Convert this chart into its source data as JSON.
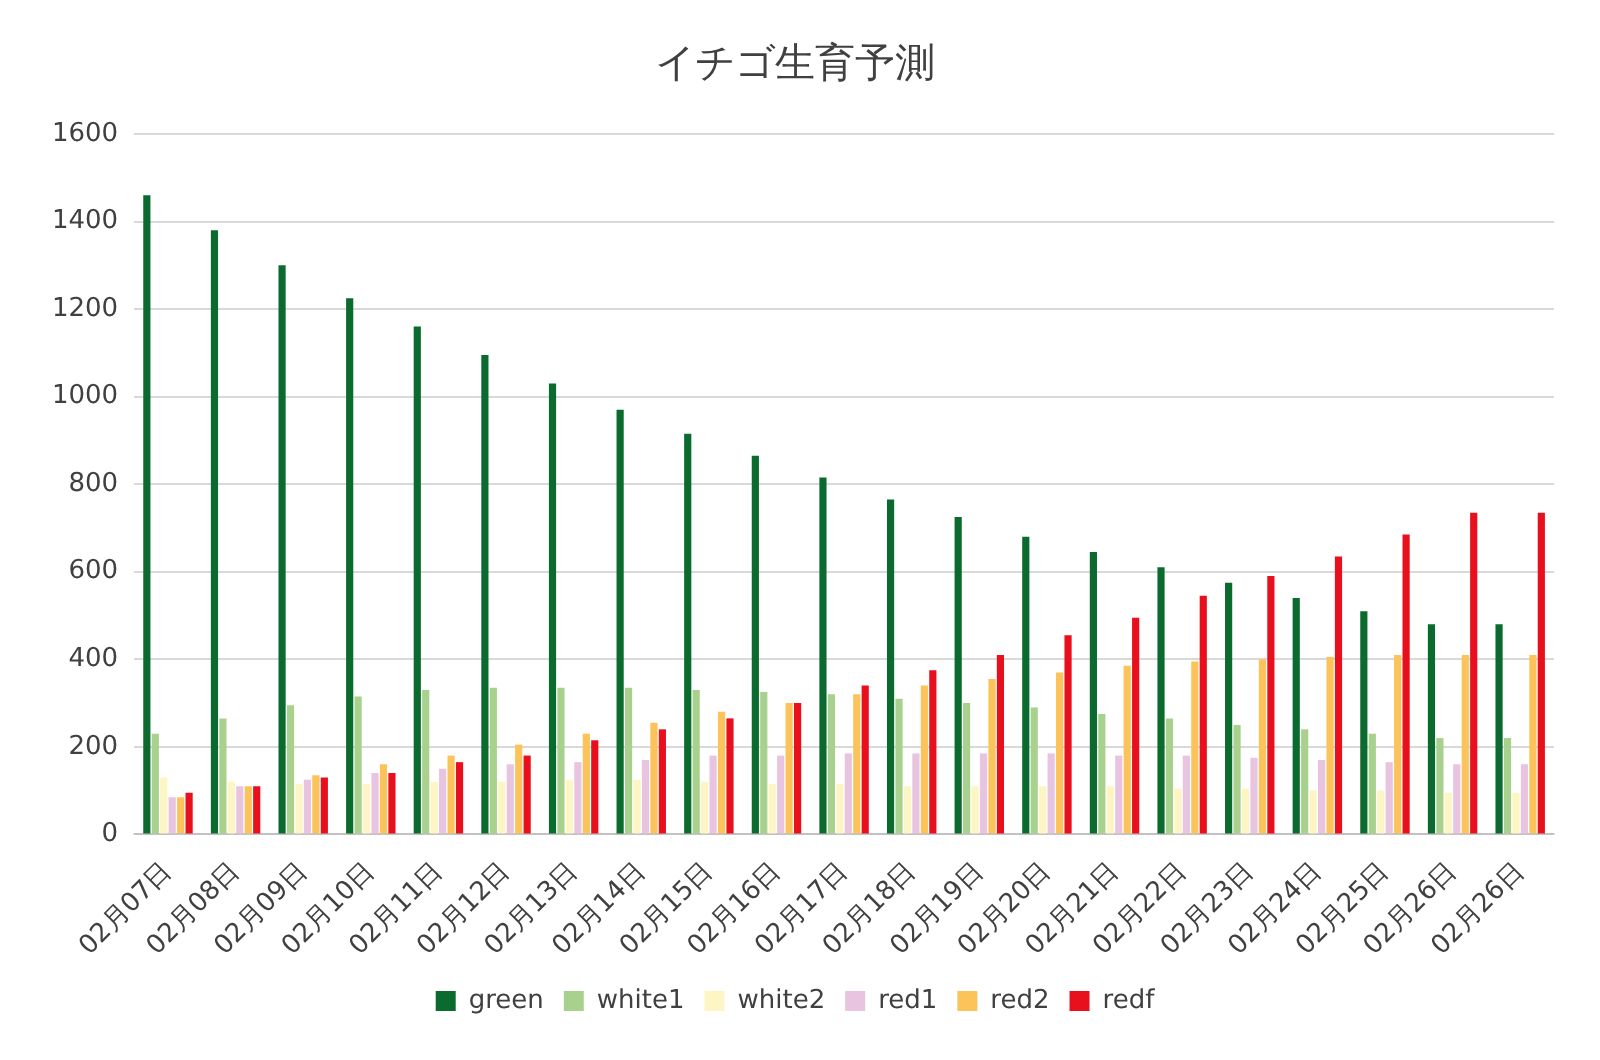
{
  "chart_data": {
    "type": "bar",
    "title": "イチゴ生育予測",
    "categories": [
      "02月07日",
      "02月08日",
      "02月09日",
      "02月10日",
      "02月11日",
      "02月12日",
      "02月13日",
      "02月14日",
      "02月15日",
      "02月16日",
      "02月17日",
      "02月18日",
      "02月19日",
      "02月20日",
      "02月21日",
      "02月22日",
      "02月23日",
      "02月24日",
      "02月25日",
      "02月26日",
      "02月26日"
    ],
    "series": [
      {
        "name": "green",
        "color": "#0b6b2e",
        "values": [
          1460,
          1380,
          1300,
          1225,
          1160,
          1095,
          1030,
          970,
          915,
          865,
          815,
          765,
          725,
          680,
          645,
          610,
          575,
          540,
          510,
          480,
          480
        ]
      },
      {
        "name": "white1",
        "color": "#a9d18e",
        "values": [
          230,
          265,
          295,
          315,
          330,
          335,
          335,
          335,
          330,
          325,
          320,
          310,
          300,
          290,
          275,
          265,
          250,
          240,
          230,
          220,
          220
        ]
      },
      {
        "name": "white2",
        "color": "#fdf5c4",
        "values": [
          130,
          120,
          115,
          115,
          120,
          120,
          125,
          125,
          120,
          115,
          115,
          110,
          110,
          110,
          110,
          105,
          105,
          100,
          100,
          95,
          95
        ]
      },
      {
        "name": "red1",
        "color": "#e8c4e0",
        "values": [
          85,
          110,
          125,
          140,
          150,
          160,
          165,
          170,
          180,
          180,
          185,
          185,
          185,
          185,
          180,
          180,
          175,
          170,
          165,
          160,
          160
        ]
      },
      {
        "name": "red2",
        "color": "#fbc35a",
        "values": [
          85,
          110,
          135,
          160,
          180,
          205,
          230,
          255,
          280,
          300,
          320,
          340,
          355,
          370,
          385,
          395,
          400,
          405,
          410,
          410,
          410
        ]
      },
      {
        "name": "redf",
        "color": "#e8101c",
        "values": [
          95,
          110,
          130,
          140,
          165,
          180,
          215,
          240,
          265,
          300,
          340,
          375,
          410,
          455,
          495,
          545,
          590,
          635,
          685,
          735,
          735
        ]
      }
    ],
    "ylim": [
      0,
      1600
    ],
    "yticks": [
      0,
      200,
      400,
      600,
      800,
      1000,
      1200,
      1400,
      1600
    ],
    "grid": "y",
    "legend": "bottom"
  }
}
